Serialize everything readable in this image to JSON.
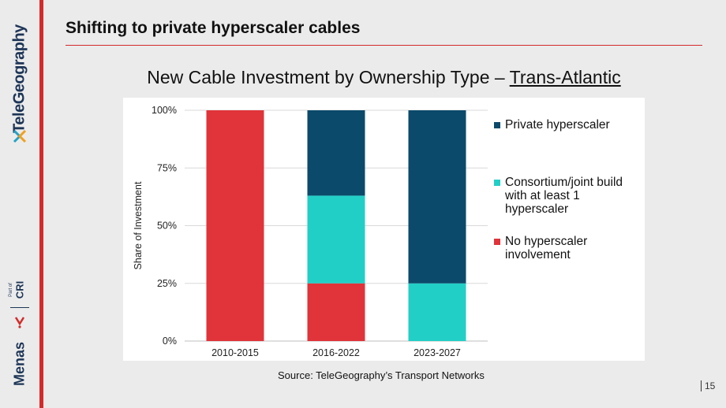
{
  "slide": {
    "title": "Shifting to private hyperscaler cables",
    "chart_title_main": "New Cable Investment by Ownership Type – ",
    "chart_title_region": "Trans-Atlantic",
    "source": "Source: TeleGeography’s Transport Networks",
    "page_number": "15"
  },
  "branding": {
    "logo_1": "TeleGeography",
    "logo_2": "Menas",
    "logo_3": "CRI",
    "logo_3_prefix": "Part of"
  },
  "colors": {
    "accent_red": "#d42a2a",
    "private_hyperscaler": "#0b4a6b",
    "consortium": "#22cfc6",
    "no_hyperscaler": "#e0333a"
  },
  "chart_data": {
    "type": "bar",
    "stacked": true,
    "title": "New Cable Investment by Ownership Type – Trans-Atlantic",
    "xlabel": "",
    "ylabel": "Share of Investment",
    "ylim": [
      0,
      100
    ],
    "yticks": [
      "0%",
      "25%",
      "50%",
      "75%",
      "100%"
    ],
    "grid": true,
    "legend_position": "right",
    "categories": [
      "2010-2015",
      "2016-2022",
      "2023-2027"
    ],
    "series": [
      {
        "name": "No hyperscaler involvement",
        "color": "#e0333a",
        "values": [
          100,
          25,
          0
        ]
      },
      {
        "name": "Consortium/joint build with at least 1 hyperscaler",
        "color": "#22cfc6",
        "values": [
          0,
          38,
          25
        ]
      },
      {
        "name": "Private hyperscaler",
        "color": "#0b4a6b",
        "values": [
          0,
          37,
          75
        ]
      }
    ],
    "legend": [
      {
        "label": "Private hyperscaler",
        "color": "#0b4a6b"
      },
      {
        "label": "Consortium/joint build with at least 1 hyperscaler",
        "color": "#22cfc6"
      },
      {
        "label": "No hyperscaler involvement",
        "color": "#e0333a"
      }
    ]
  }
}
